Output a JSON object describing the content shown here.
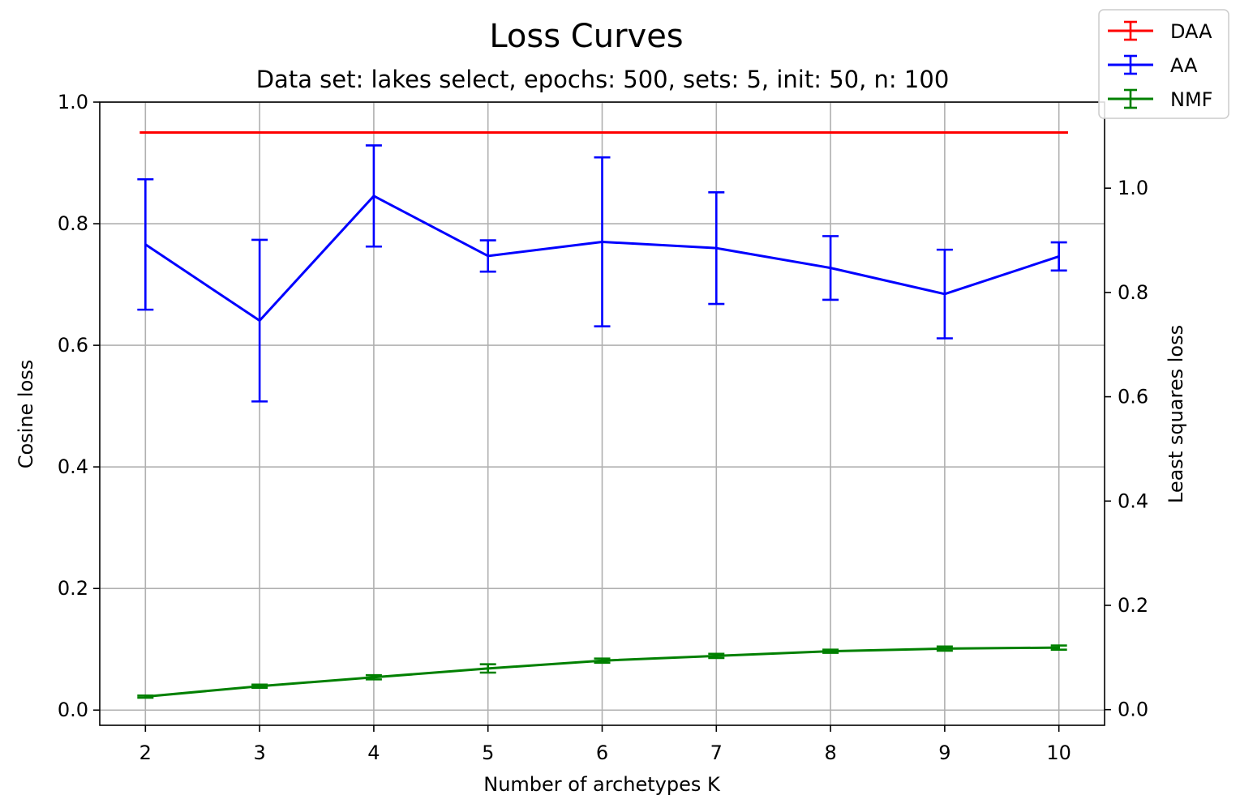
{
  "chart_data": {
    "type": "line",
    "title": "Loss Curves",
    "subtitle": "Data set:  lakes select, epochs: 500, sets: 5, init: 50, n: 100",
    "xlabel": "Number of archetypes K",
    "ylabel_left": "Cosine loss",
    "ylabel_right": "Least squares loss",
    "x": [
      2,
      3,
      4,
      5,
      6,
      7,
      8,
      9,
      10
    ],
    "xticks": [
      "2",
      "3",
      "4",
      "5",
      "6",
      "7",
      "8",
      "9",
      "10"
    ],
    "xlim": [
      1.6,
      10.4
    ],
    "ylim_left": [
      -0.025,
      1.0
    ],
    "ylim_right": [
      -0.03,
      1.165
    ],
    "yticks_left": [
      "0.0",
      "0.2",
      "0.4",
      "0.6",
      "0.8",
      "1.0"
    ],
    "yticks_right": [
      "0.0",
      "0.2",
      "0.4",
      "0.6",
      "0.8",
      "1.0"
    ],
    "grid": true,
    "legend_position": "top-right",
    "series": [
      {
        "name": "DAA",
        "color": "#ff0000",
        "axis": "left",
        "values": [
          0.95,
          0.95,
          0.95,
          0.95,
          0.95,
          0.95,
          0.95,
          0.95,
          0.95
        ],
        "errors": [
          0.0,
          0.0,
          0.0,
          0.0,
          0.0,
          0.0,
          0.0,
          0.0,
          0.0
        ],
        "x_start": 1.95,
        "x_end": 10.08
      },
      {
        "name": "AA",
        "color": "#0000ff",
        "axis": "right",
        "values": [
          0.892,
          0.746,
          0.985,
          0.87,
          0.897,
          0.885,
          0.847,
          0.797,
          0.869
        ],
        "errors": [
          0.125,
          0.155,
          0.097,
          0.03,
          0.162,
          0.107,
          0.061,
          0.085,
          0.027
        ]
      },
      {
        "name": "NMF",
        "color": "#008000",
        "axis": "right",
        "values": [
          0.025,
          0.045,
          0.062,
          0.079,
          0.094,
          0.103,
          0.112,
          0.117,
          0.119
        ],
        "errors": [
          0.002,
          0.003,
          0.004,
          0.008,
          0.004,
          0.004,
          0.003,
          0.004,
          0.004
        ]
      }
    ]
  }
}
